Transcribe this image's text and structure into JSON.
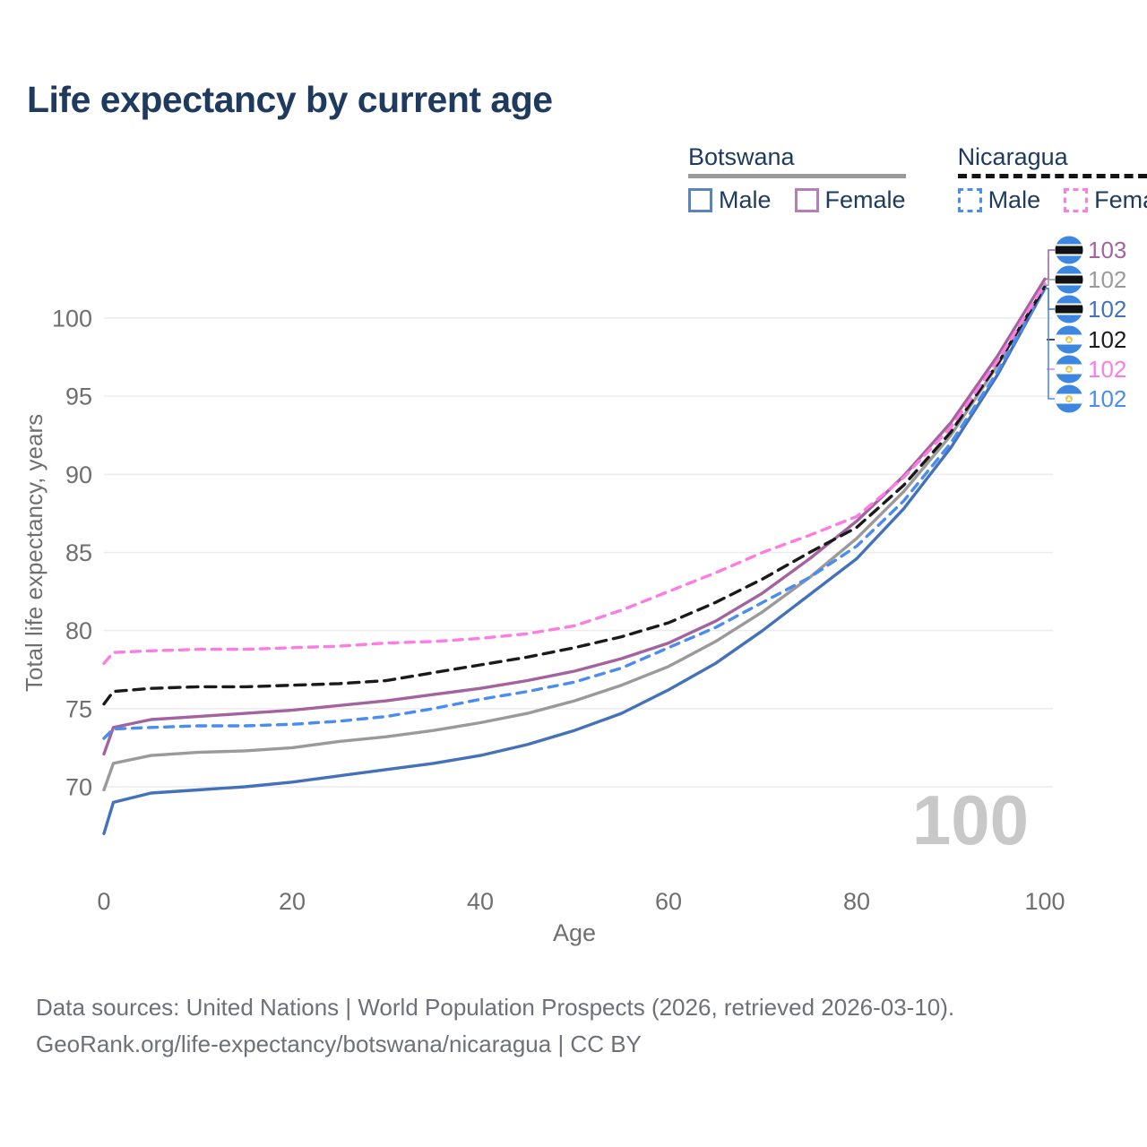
{
  "title": "Life expectancy by current age",
  "legend": {
    "groups": [
      {
        "label": "Botswana",
        "line_style": "solid",
        "line_color": "#9a9a9a",
        "items": [
          {
            "label": "Male",
            "color": "#5b84bd",
            "dashed": false
          },
          {
            "label": "Female",
            "color": "#b47fb4",
            "dashed": false
          }
        ]
      },
      {
        "label": "Nicaragua",
        "line_style": "dashed",
        "line_color": "#141414",
        "items": [
          {
            "label": "Male",
            "color": "#4a8cf0",
            "dashed": true
          },
          {
            "label": "Female",
            "color": "#fb7de2",
            "dashed": true
          }
        ]
      }
    ]
  },
  "chart_data": {
    "type": "line",
    "title": "Life expectancy by current age",
    "xlabel": "Age",
    "ylabel": "Total life expectancy, years",
    "xlim": [
      0,
      100
    ],
    "ylim": [
      66.5,
      103.5
    ],
    "x_ticks": [
      0,
      20,
      40,
      60,
      80,
      100
    ],
    "y_ticks": [
      70,
      75,
      80,
      85,
      90,
      95,
      100
    ],
    "grid": "horizontal",
    "legend_position": "top-right",
    "x": [
      0,
      1,
      5,
      10,
      15,
      20,
      25,
      30,
      35,
      40,
      45,
      50,
      55,
      60,
      65,
      70,
      75,
      80,
      85,
      90,
      95,
      100
    ],
    "series": [
      {
        "id": "botswana-male",
        "name": "Botswana Male",
        "color": "#4472b9",
        "dash": null,
        "values": [
          67.0,
          69.0,
          69.6,
          69.8,
          70.0,
          70.3,
          70.7,
          71.1,
          71.5,
          72.0,
          72.7,
          73.6,
          74.7,
          76.2,
          77.9,
          80.0,
          82.3,
          84.6,
          87.8,
          91.7,
          96.4,
          101.9
        ]
      },
      {
        "id": "botswana-all",
        "name": "Botswana Both sexes",
        "color": "#9a9a9a",
        "dash": null,
        "values": [
          69.8,
          71.5,
          72.0,
          72.2,
          72.3,
          72.5,
          72.9,
          73.2,
          73.6,
          74.1,
          74.7,
          75.5,
          76.5,
          77.7,
          79.3,
          81.2,
          83.4,
          85.9,
          88.9,
          92.5,
          97.0,
          102.1
        ]
      },
      {
        "id": "botswana-female",
        "name": "Botswana Female",
        "color": "#a3639e",
        "dash": null,
        "values": [
          72.1,
          73.8,
          74.3,
          74.5,
          74.7,
          74.9,
          75.2,
          75.5,
          75.9,
          76.3,
          76.8,
          77.4,
          78.2,
          79.2,
          80.6,
          82.4,
          84.6,
          87.0,
          89.9,
          93.3,
          97.6,
          102.5
        ]
      },
      {
        "id": "nicaragua-male",
        "name": "Nicaragua Male",
        "color": "#4a8cf0",
        "dash": "10 8",
        "values": [
          73.1,
          73.7,
          73.8,
          73.9,
          73.9,
          74.0,
          74.2,
          74.5,
          75.0,
          75.6,
          76.1,
          76.7,
          77.6,
          78.9,
          80.2,
          81.8,
          83.4,
          85.4,
          88.3,
          92.0,
          96.6,
          101.9
        ]
      },
      {
        "id": "nicaragua-all",
        "name": "Nicaragua Both sexes",
        "color": "#1a1a1a",
        "dash": "12 8",
        "values": [
          75.3,
          76.1,
          76.3,
          76.4,
          76.4,
          76.5,
          76.6,
          76.8,
          77.3,
          77.8,
          78.3,
          78.9,
          79.6,
          80.5,
          81.8,
          83.3,
          85.0,
          86.6,
          89.3,
          92.7,
          97.1,
          102.0
        ]
      },
      {
        "id": "nicaragua-female",
        "name": "Nicaragua Female",
        "color": "#fb7de2",
        "dash": "10 8",
        "values": [
          77.9,
          78.6,
          78.7,
          78.8,
          78.8,
          78.9,
          79.0,
          79.2,
          79.3,
          79.5,
          79.8,
          80.3,
          81.3,
          82.5,
          83.7,
          85.0,
          86.1,
          87.3,
          89.8,
          93.0,
          97.3,
          102.2
        ]
      }
    ],
    "end_labels": [
      {
        "flag": "botswana",
        "value": "103",
        "color": "#a3639e",
        "from_value": 102.5
      },
      {
        "flag": "botswana",
        "value": "102",
        "color": "#9a9a9a",
        "from_value": 102.1
      },
      {
        "flag": "botswana",
        "value": "102",
        "color": "#4472b9",
        "from_value": 101.9
      },
      {
        "flag": "nicaragua",
        "value": "102",
        "color": "#1a1a1a",
        "from_value": null
      },
      {
        "flag": "nicaragua",
        "value": "102",
        "color": "#fb7de2",
        "from_value": null
      },
      {
        "flag": "nicaragua",
        "value": "102",
        "color": "#4a8cf0",
        "from_value": 101.9
      }
    ],
    "flag_colors": {
      "blue": "#3d87e0",
      "black": "#111111",
      "white": "#ffffff",
      "gold": "#eac94d"
    },
    "axis_text_color": "#6f6f6f",
    "grid_color": "#ececec",
    "watermark": "100",
    "watermark_color": "#c8c8c8"
  },
  "footer": {
    "line1": "Data sources: United Nations | World Population Prospects (2026, retrieved 2026-03-10).",
    "line2": "GeoRank.org/life-expectancy/botswana/nicaragua | CC BY"
  }
}
